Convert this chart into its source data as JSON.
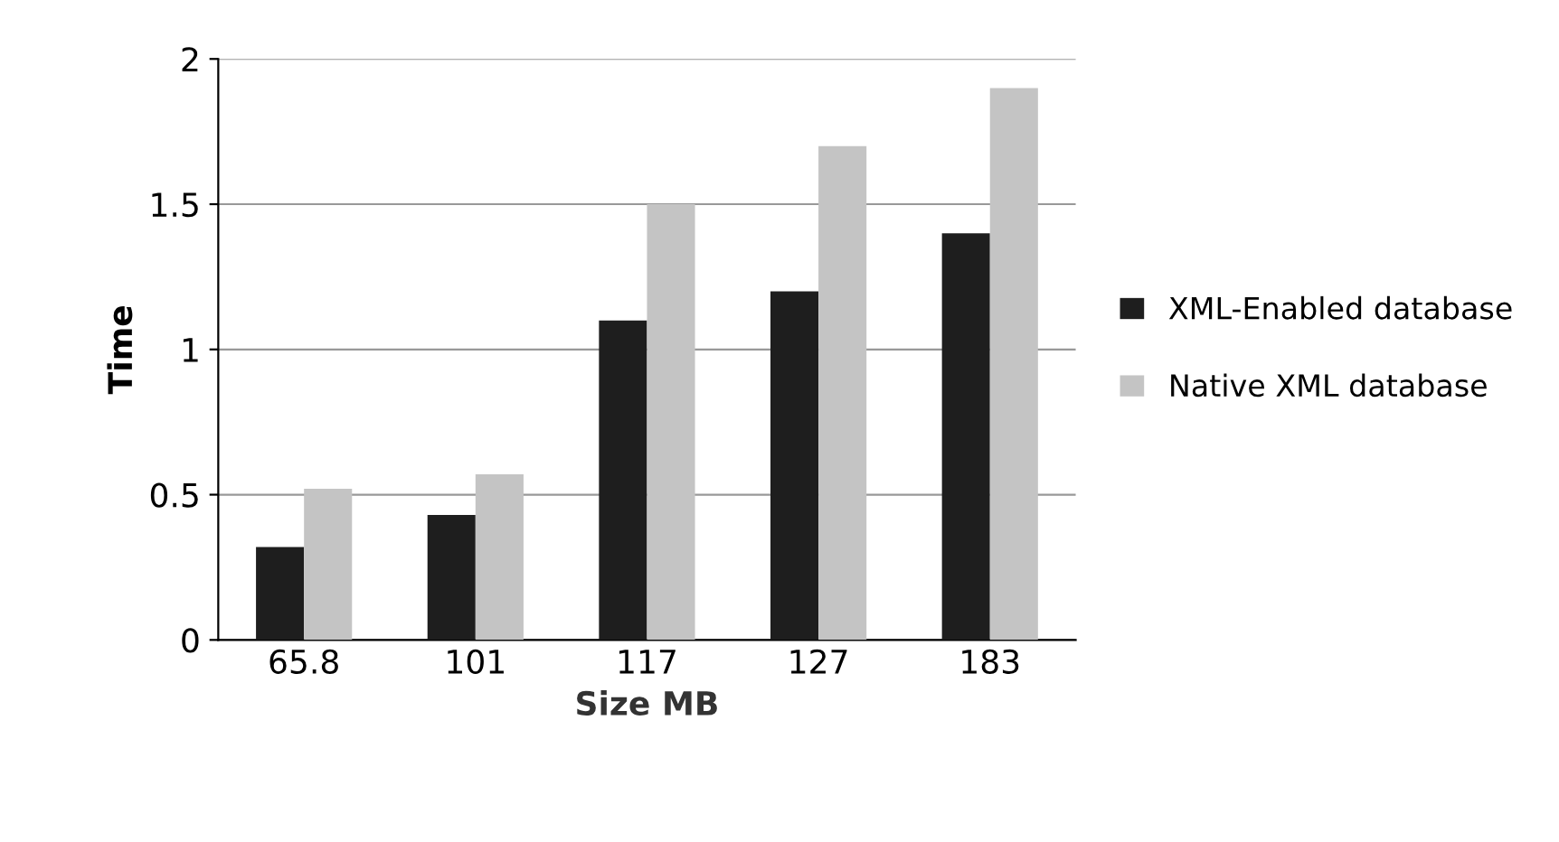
{
  "chart_data": {
    "type": "bar",
    "xlabel": "Size MB",
    "ylabel": "Time",
    "categories": [
      "65.8",
      "101",
      "117",
      "127",
      "183"
    ],
    "series": [
      {
        "name": "XML-Enabled database",
        "color": "#1e1e1e",
        "values": [
          0.32,
          0.43,
          1.1,
          1.2,
          1.4
        ]
      },
      {
        "name": "Native XML database",
        "color": "#c4c4c4",
        "values": [
          0.52,
          0.57,
          1.5,
          1.7,
          1.9
        ]
      }
    ],
    "ylim": [
      0,
      2
    ],
    "yticks": [
      0,
      0.5,
      1,
      1.5,
      2
    ],
    "grid": "y",
    "legend": "right"
  }
}
